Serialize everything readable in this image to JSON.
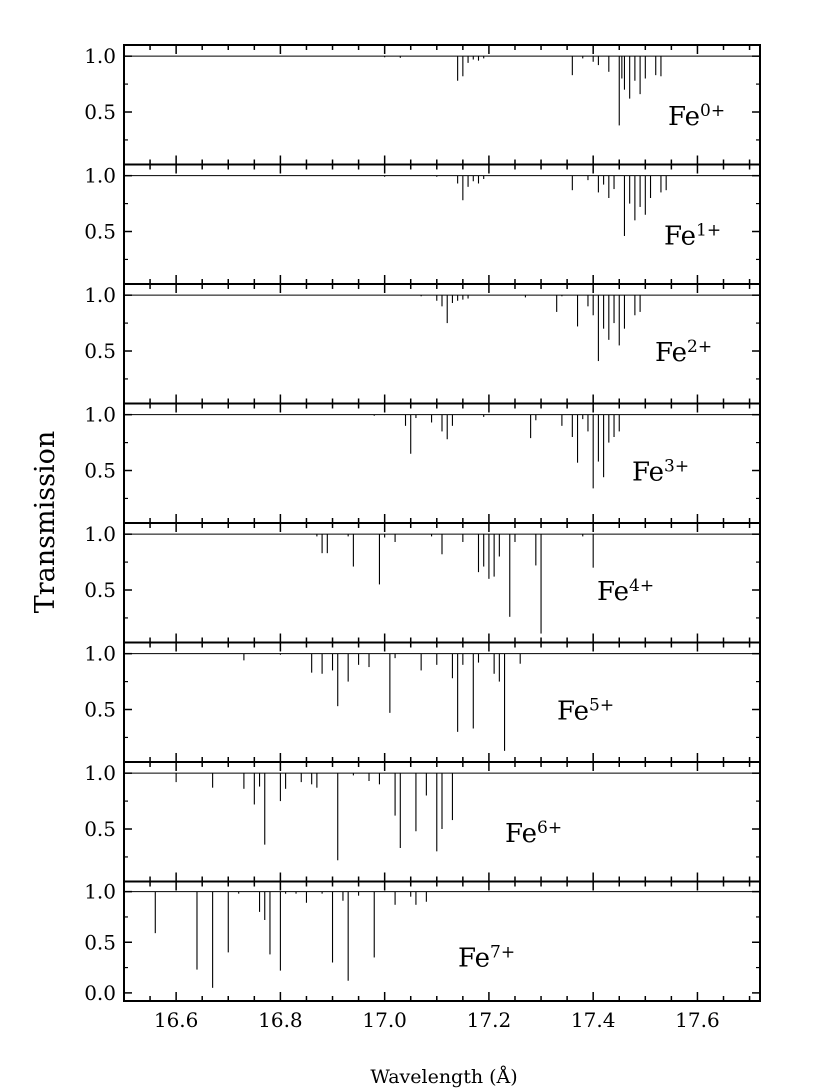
{
  "chart_data": {
    "type": "line",
    "ylabel": "Transmission",
    "xlabel": "Wavelength (Å)",
    "xlim": [
      16.5,
      17.72
    ],
    "x_ticks": [
      "16.6",
      "16.8",
      "17.0",
      "17.2",
      "17.4",
      "17.6"
    ],
    "x_tick_values": [
      16.6,
      16.8,
      17.0,
      17.2,
      17.4,
      17.6
    ],
    "ylim_upper_panels": [
      0.03,
      1.1
    ],
    "ylim_bottom_panel": [
      -0.08,
      1.1
    ],
    "y_ticks_upper": [
      "1.0",
      "0.5"
    ],
    "y_ticks_bottom": [
      "1.0",
      "0.5",
      "0.0"
    ],
    "grid": false,
    "panels": [
      {
        "ion": "Fe",
        "charge": "0+",
        "lines": [
          [
            17.0,
            0.99
          ],
          [
            17.03,
            0.985
          ],
          [
            17.14,
            0.78
          ],
          [
            17.15,
            0.82
          ],
          [
            17.16,
            0.94
          ],
          [
            17.17,
            0.97
          ],
          [
            17.18,
            0.96
          ],
          [
            17.19,
            0.98
          ],
          [
            17.36,
            0.83
          ],
          [
            17.38,
            0.98
          ],
          [
            17.4,
            0.95
          ],
          [
            17.41,
            0.92
          ],
          [
            17.43,
            0.86
          ],
          [
            17.45,
            0.38
          ],
          [
            17.455,
            0.8
          ],
          [
            17.46,
            0.7
          ],
          [
            17.47,
            0.62
          ],
          [
            17.48,
            0.78
          ],
          [
            17.49,
            0.66
          ],
          [
            17.5,
            0.8
          ],
          [
            17.52,
            0.83
          ],
          [
            17.53,
            0.82
          ]
        ]
      },
      {
        "ion": "Fe",
        "charge": "1+",
        "lines": [
          [
            17.0,
            0.99
          ],
          [
            17.1,
            0.99
          ],
          [
            17.14,
            0.93
          ],
          [
            17.15,
            0.78
          ],
          [
            17.16,
            0.9
          ],
          [
            17.17,
            0.95
          ],
          [
            17.18,
            0.93
          ],
          [
            17.19,
            0.97
          ],
          [
            17.36,
            0.87
          ],
          [
            17.39,
            0.96
          ],
          [
            17.41,
            0.85
          ],
          [
            17.42,
            0.92
          ],
          [
            17.43,
            0.8
          ],
          [
            17.44,
            0.88
          ],
          [
            17.46,
            0.46
          ],
          [
            17.47,
            0.75
          ],
          [
            17.48,
            0.6
          ],
          [
            17.49,
            0.72
          ],
          [
            17.5,
            0.65
          ],
          [
            17.51,
            0.8
          ],
          [
            17.53,
            0.85
          ],
          [
            17.54,
            0.87
          ]
        ]
      },
      {
        "ion": "Fe",
        "charge": "2+",
        "lines": [
          [
            17.07,
            0.99
          ],
          [
            17.1,
            0.95
          ],
          [
            17.11,
            0.9
          ],
          [
            17.12,
            0.75
          ],
          [
            17.13,
            0.93
          ],
          [
            17.14,
            0.95
          ],
          [
            17.15,
            0.96
          ],
          [
            17.16,
            0.97
          ],
          [
            17.27,
            0.98
          ],
          [
            17.33,
            0.85
          ],
          [
            17.34,
            0.99
          ],
          [
            17.37,
            0.72
          ],
          [
            17.39,
            0.9
          ],
          [
            17.4,
            0.82
          ],
          [
            17.41,
            0.41
          ],
          [
            17.42,
            0.7
          ],
          [
            17.43,
            0.6
          ],
          [
            17.44,
            0.75
          ],
          [
            17.45,
            0.55
          ],
          [
            17.46,
            0.7
          ],
          [
            17.48,
            0.82
          ],
          [
            17.49,
            0.85
          ]
        ]
      },
      {
        "ion": "Fe",
        "charge": "3+",
        "lines": [
          [
            16.98,
            0.99
          ],
          [
            17.04,
            0.9
          ],
          [
            17.05,
            0.65
          ],
          [
            17.06,
            0.97
          ],
          [
            17.09,
            0.93
          ],
          [
            17.11,
            0.85
          ],
          [
            17.12,
            0.78
          ],
          [
            17.13,
            0.9
          ],
          [
            17.19,
            0.98
          ],
          [
            17.28,
            0.79
          ],
          [
            17.29,
            0.95
          ],
          [
            17.34,
            0.9
          ],
          [
            17.36,
            0.8
          ],
          [
            17.37,
            0.57
          ],
          [
            17.38,
            0.96
          ],
          [
            17.39,
            0.85
          ],
          [
            17.4,
            0.34
          ],
          [
            17.41,
            0.58
          ],
          [
            17.42,
            0.44
          ],
          [
            17.43,
            0.75
          ],
          [
            17.44,
            0.8
          ],
          [
            17.45,
            0.85
          ]
        ]
      },
      {
        "ion": "Fe",
        "charge": "4+",
        "lines": [
          [
            16.87,
            0.98
          ],
          [
            16.88,
            0.83
          ],
          [
            16.89,
            0.83
          ],
          [
            16.93,
            0.98
          ],
          [
            16.94,
            0.71
          ],
          [
            16.99,
            0.55
          ],
          [
            17.0,
            0.97
          ],
          [
            17.02,
            0.93
          ],
          [
            17.09,
            0.98
          ],
          [
            17.11,
            0.82
          ],
          [
            17.15,
            0.93
          ],
          [
            17.18,
            0.66
          ],
          [
            17.19,
            0.71
          ],
          [
            17.2,
            0.6
          ],
          [
            17.21,
            0.62
          ],
          [
            17.22,
            0.8
          ],
          [
            17.24,
            0.26
          ],
          [
            17.25,
            0.93
          ],
          [
            17.29,
            0.72
          ],
          [
            17.3,
            0.11
          ],
          [
            17.38,
            0.98
          ],
          [
            17.4,
            0.7
          ]
        ]
      },
      {
        "ion": "Fe",
        "charge": "5+",
        "lines": [
          [
            16.73,
            0.94
          ],
          [
            16.8,
            0.99
          ],
          [
            16.86,
            0.83
          ],
          [
            16.88,
            0.82
          ],
          [
            16.9,
            0.85
          ],
          [
            16.91,
            0.53
          ],
          [
            16.93,
            0.75
          ],
          [
            16.95,
            0.9
          ],
          [
            16.97,
            0.88
          ],
          [
            17.01,
            0.47
          ],
          [
            17.02,
            0.96
          ],
          [
            17.07,
            0.85
          ],
          [
            17.1,
            0.9
          ],
          [
            17.13,
            0.78
          ],
          [
            17.14,
            0.3
          ],
          [
            17.15,
            0.9
          ],
          [
            17.17,
            0.33
          ],
          [
            17.18,
            0.92
          ],
          [
            17.21,
            0.82
          ],
          [
            17.22,
            0.75
          ],
          [
            17.23,
            0.13
          ],
          [
            17.26,
            0.91
          ]
        ]
      },
      {
        "ion": "Fe",
        "charge": "6+",
        "lines": [
          [
            16.6,
            0.92
          ],
          [
            16.67,
            0.87
          ],
          [
            16.73,
            0.86
          ],
          [
            16.75,
            0.72
          ],
          [
            16.76,
            0.88
          ],
          [
            16.77,
            0.36
          ],
          [
            16.8,
            0.75
          ],
          [
            16.81,
            0.86
          ],
          [
            16.84,
            0.92
          ],
          [
            16.86,
            0.9
          ],
          [
            16.87,
            0.87
          ],
          [
            16.91,
            0.22
          ],
          [
            16.94,
            0.98
          ],
          [
            16.97,
            0.93
          ],
          [
            16.99,
            0.9
          ],
          [
            17.02,
            0.62
          ],
          [
            17.03,
            0.33
          ],
          [
            17.06,
            0.48
          ],
          [
            17.08,
            0.8
          ],
          [
            17.1,
            0.3
          ],
          [
            17.11,
            0.5
          ],
          [
            17.13,
            0.58
          ]
        ]
      },
      {
        "ion": "Fe",
        "charge": "7+",
        "lines": [
          [
            16.56,
            0.59
          ],
          [
            16.64,
            0.23
          ],
          [
            16.67,
            0.05
          ],
          [
            16.7,
            0.4
          ],
          [
            16.72,
            0.98
          ],
          [
            16.76,
            0.8
          ],
          [
            16.77,
            0.72
          ],
          [
            16.78,
            0.38
          ],
          [
            16.8,
            0.22
          ],
          [
            16.81,
            0.98
          ],
          [
            16.83,
            0.98
          ],
          [
            16.85,
            0.89
          ],
          [
            16.88,
            0.98
          ],
          [
            16.9,
            0.3
          ],
          [
            16.92,
            0.91
          ],
          [
            16.93,
            0.12
          ],
          [
            16.95,
            0.96
          ],
          [
            16.98,
            0.35
          ],
          [
            17.02,
            0.87
          ],
          [
            17.05,
            0.95
          ],
          [
            17.06,
            0.87
          ],
          [
            17.08,
            0.9
          ]
        ]
      }
    ]
  }
}
